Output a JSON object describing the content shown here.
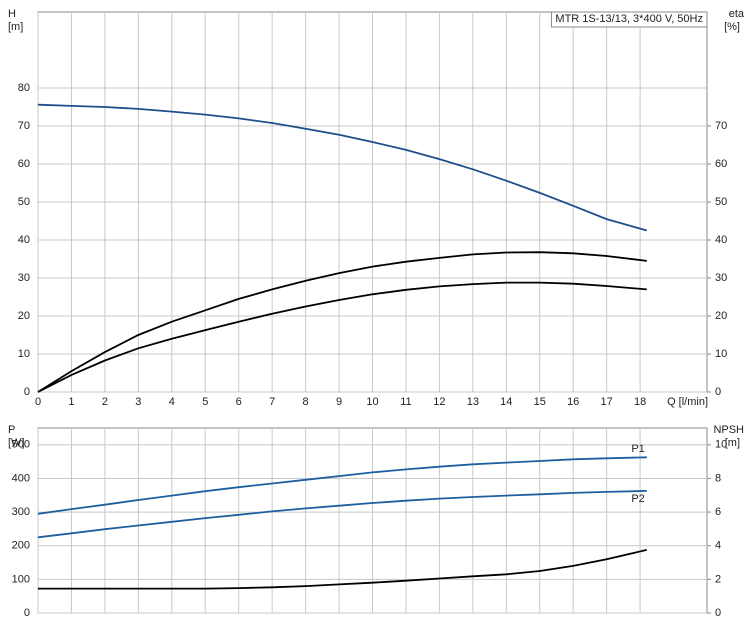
{
  "chart_data": [
    {
      "type": "line",
      "title": "MTR 1S-13/13, 3*400 V, 50Hz",
      "ylabel": "H",
      "yunit": "[m]",
      "y2label": "eta",
      "y2unit": "[%]",
      "xlabel": "Q [l/min]",
      "x": [
        0,
        1,
        2,
        3,
        4,
        5,
        6,
        7,
        8,
        9,
        10,
        11,
        12,
        13,
        14,
        15,
        16,
        17,
        18.2
      ],
      "xlim": [
        0,
        20
      ],
      "xticks": [
        0,
        1,
        2,
        3,
        4,
        5,
        6,
        7,
        8,
        9,
        10,
        11,
        12,
        13,
        14,
        15,
        16,
        17,
        18
      ],
      "ylim": [
        0,
        100
      ],
      "yticks": [
        0,
        10,
        20,
        30,
        40,
        50,
        60,
        70,
        80
      ],
      "y2lim": [
        0,
        100
      ],
      "y2ticks": [
        0,
        10,
        20,
        30,
        40,
        50,
        60,
        70
      ],
      "grid": true,
      "series": [
        {
          "color": "#1e4f8a",
          "values": [
            75.6,
            75.3,
            75,
            74.5,
            73.8,
            73,
            72,
            70.8,
            69.3,
            67.7,
            65.8,
            63.7,
            61.3,
            58.6,
            55.6,
            52.4,
            49,
            45.5,
            42.5
          ]
        },
        {
          "color": "#000000",
          "axis": "y2",
          "values": [
            0,
            5.5,
            10.5,
            15,
            18.5,
            21.5,
            24.5,
            27,
            29.3,
            31.3,
            33,
            34.3,
            35.3,
            36.2,
            36.7,
            36.8,
            36.5,
            35.8,
            34.5
          ]
        },
        {
          "color": "#000000",
          "axis": "y2",
          "values": [
            0,
            4.5,
            8.3,
            11.5,
            14,
            16.3,
            18.5,
            20.6,
            22.5,
            24.2,
            25.7,
            26.9,
            27.8,
            28.4,
            28.8,
            28.8,
            28.5,
            27.9,
            27
          ]
        }
      ]
    },
    {
      "type": "line",
      "ylabel": "P",
      "yunit": "[W]",
      "y2label": "NPSH",
      "y2unit": "[m]",
      "x": [
        0,
        1,
        2,
        3,
        4,
        5,
        6,
        7,
        8,
        9,
        10,
        11,
        12,
        13,
        14,
        15,
        16,
        17,
        18.2
      ],
      "xlim": [
        0,
        20
      ],
      "xticks": [
        0,
        1,
        2,
        3,
        4,
        5,
        6,
        7,
        8,
        9,
        10,
        11,
        12,
        13,
        14,
        15,
        16,
        17,
        18
      ],
      "ylim": [
        0,
        550
      ],
      "yticks": [
        0,
        100,
        200,
        300,
        400,
        500
      ],
      "y2lim": [
        0,
        11
      ],
      "y2ticks": [
        0,
        2,
        4,
        6,
        8,
        10
      ],
      "grid": true,
      "series": [
        {
          "name": "P1",
          "color": "#1f5fa0",
          "values": [
            295,
            309,
            322,
            336,
            349,
            362,
            374,
            385,
            396,
            407,
            418,
            427,
            435,
            442,
            447,
            452,
            457,
            460,
            463
          ]
        },
        {
          "name": "P2",
          "color": "#1f5fa0",
          "values": [
            225,
            237,
            249,
            260,
            271,
            282,
            292,
            302,
            311,
            319,
            327,
            334,
            340,
            345,
            349,
            353,
            357,
            360,
            363
          ]
        },
        {
          "color": "#000000",
          "axis": "y2",
          "values": [
            1.45,
            1.45,
            1.45,
            1.45,
            1.45,
            1.45,
            1.48,
            1.53,
            1.6,
            1.7,
            1.8,
            1.92,
            2.05,
            2.18,
            2.3,
            2.5,
            2.8,
            3.2,
            3.75
          ]
        }
      ]
    }
  ]
}
